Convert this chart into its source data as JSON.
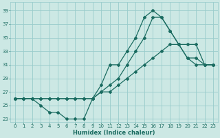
{
  "title": "",
  "xlabel": "Humidex (Indice chaleur)",
  "bg_color": "#cce8e4",
  "grid_color": "#99cccc",
  "line_color": "#1a6b60",
  "line1": {
    "x": [
      0,
      1,
      2,
      3,
      4,
      5,
      6,
      7,
      8,
      9,
      10,
      11,
      12,
      13,
      14,
      15,
      16,
      17,
      18,
      19,
      20,
      21,
      22,
      23
    ],
    "y": [
      26,
      26,
      26,
      26,
      26,
      26,
      26,
      26,
      26,
      26,
      27,
      27,
      28,
      29,
      30,
      31,
      32,
      33,
      34,
      34,
      34,
      34,
      31,
      31
    ]
  },
  "line2": {
    "x": [
      0,
      1,
      2,
      3,
      4,
      5,
      6,
      7,
      8,
      9,
      10,
      11,
      12,
      13,
      14,
      15,
      16,
      17,
      18,
      19,
      20,
      21,
      22,
      23
    ],
    "y": [
      26,
      26,
      26,
      26,
      26,
      26,
      26,
      26,
      26,
      26,
      27,
      28,
      29,
      31,
      33,
      35,
      38,
      38,
      36,
      34,
      32,
      31,
      31,
      31
    ]
  },
  "line3": {
    "x": [
      0,
      1,
      2,
      3,
      4,
      5,
      6,
      7,
      8,
      9,
      10,
      11,
      12,
      13,
      14,
      15,
      16,
      17,
      18,
      19,
      20,
      21,
      22,
      23
    ],
    "y": [
      26,
      26,
      26,
      25,
      24,
      24,
      23,
      23,
      23,
      26,
      28,
      31,
      31,
      33,
      35,
      38,
      39,
      38,
      36,
      34,
      32,
      32,
      31,
      31
    ]
  },
  "xlim": [
    -0.5,
    23.5
  ],
  "ylim": [
    22.5,
    40.2
  ],
  "yticks": [
    23,
    25,
    27,
    29,
    31,
    33,
    35,
    37,
    39
  ],
  "xticks": [
    0,
    1,
    2,
    3,
    4,
    5,
    6,
    7,
    8,
    9,
    10,
    11,
    12,
    13,
    14,
    15,
    16,
    17,
    18,
    19,
    20,
    21,
    22,
    23
  ],
  "xlabel_fontsize": 6.0,
  "tick_fontsize": 5.0
}
